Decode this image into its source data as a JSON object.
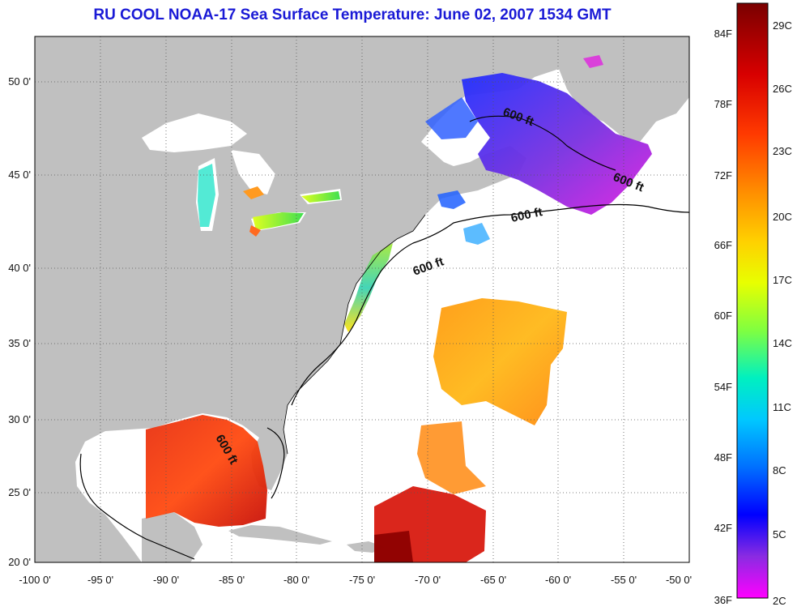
{
  "title": "RU COOL  NOAA-17  Sea Surface Temperature:  June 02, 2007 1534 GMT",
  "map": {
    "lon_ticks": [
      "-100 0'",
      "-95 0'",
      "-90 0'",
      "-85 0'",
      "-80 0'",
      "-75 0'",
      "-70 0'",
      "-65 0'",
      "-60 0'",
      "-55 0'",
      "-50 0'"
    ],
    "lat_ticks": [
      "50 0'",
      "45 0'",
      "40 0'",
      "35 0'",
      "30 0'",
      "25 0'",
      "20 0'"
    ],
    "contour_labels": [
      "600 ft",
      "600 ft",
      "600 ft",
      "600 ft",
      "600 ft"
    ],
    "land_color": "#c0c0c0",
    "grid": "dotted"
  },
  "colorbar": {
    "fahrenheit": [
      "84F",
      "78F",
      "72F",
      "66F",
      "60F",
      "54F",
      "48F",
      "42F",
      "36F"
    ],
    "celsius": [
      "29C",
      "26C",
      "23C",
      "20C",
      "17C",
      "14C",
      "11C",
      "8C",
      "5C",
      "2C"
    ],
    "gradient": [
      "#7a0000",
      "#d80000",
      "#ff3a00",
      "#ff8c00",
      "#ffd000",
      "#e8ff00",
      "#80ff40",
      "#00e8c0",
      "#00c8ff",
      "#0060ff",
      "#0000ff",
      "#8a2be2",
      "#ff00ff"
    ]
  }
}
